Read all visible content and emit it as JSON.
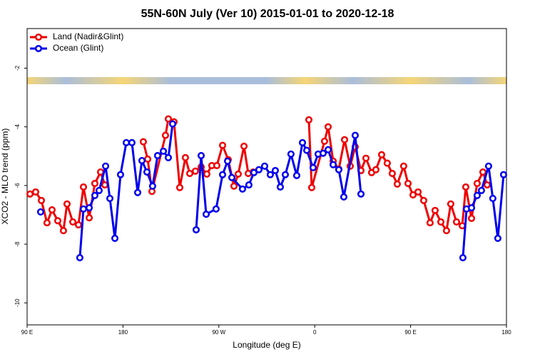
{
  "chart_data": {
    "type": "line",
    "title": "55N-60N July (Ver 10)   2015-01-01 to 2020-12-18",
    "x_label": "Longitude (deg E)",
    "y_label": "XCO2 - MLO trend (ppm)",
    "xlim": [
      90,
      540
    ],
    "ylim": [
      -10.75,
      -0.65
    ],
    "xticks": [
      {
        "value": 90,
        "label": "90 E"
      },
      {
        "value": 180,
        "label": "180"
      },
      {
        "value": 270,
        "label": "90 W"
      },
      {
        "value": 360,
        "label": "0"
      },
      {
        "value": 450,
        "label": "90 E"
      },
      {
        "value": 540,
        "label": "180"
      }
    ],
    "yticks": [
      -10,
      -8,
      -6,
      -4,
      -2
    ],
    "legend_position": "top-left",
    "series": [
      {
        "name": "Land (Nadir&Glint)",
        "color": "#ee0000",
        "x": [
          92.7,
          98.0,
          103.4,
          108.7,
          113.4,
          118.8,
          124.1,
          127.5,
          132.9,
          138.2,
          142.9,
          148.3,
          153.6,
          159.0,
          163.0,
          null,
          199.1,
          203.2,
          207.2,
          219.9,
          222.6,
          227.9,
          233.3,
          238.6,
          242.7,
          248.0,
          253.4,
          258.7,
          263.4,
          268.1,
          273.5,
          278.8,
          284.2,
          288.2,
          293.6,
          297.6,
          302.3,
          null,
          354.5,
          357.2,
          369.2,
          372.6,
          377.3,
          382.6,
          388.0,
          393.3,
          398.0,
          403.4,
          408.1,
          413.4,
          417.4,
          422.8,
          428.1,
          432.8,
          437.5,
          443.5,
          447.6,
          452.3,
          457.0,
          462.3,
          468.3,
          473.0,
          478.4,
          483.7,
          487.7,
          493.1,
          498.5,
          501.8,
          507.2,
          512.5,
          517.9,
          521.9
        ],
        "values": [
          -6.29,
          -6.22,
          -6.51,
          -7.27,
          -6.83,
          -7.2,
          -7.54,
          -6.63,
          -7.24,
          -7.34,
          -6.05,
          -7.1,
          -5.93,
          -5.54,
          -5.98,
          null,
          -4.51,
          -5.1,
          -6.2,
          -4.29,
          -3.73,
          -3.83,
          -6.07,
          -5.05,
          -5.59,
          -5.51,
          -5.37,
          -5.61,
          -5.32,
          -5.32,
          -4.63,
          -5.12,
          -6.02,
          -5.61,
          -4.66,
          -5.59,
          -5.54,
          null,
          -3.76,
          -6.07,
          -4.49,
          -4.0,
          -5.17,
          -5.44,
          -4.44,
          -5.34,
          -4.68,
          -5.49,
          -5.07,
          -5.56,
          -5.46,
          -4.95,
          -5.24,
          -5.59,
          -5.95,
          -5.34,
          -5.93,
          -6.32,
          -6.22,
          -6.51,
          -7.27,
          -6.85,
          -7.24,
          -7.54,
          -6.63,
          -7.24,
          -7.37,
          -6.05,
          -7.12,
          -5.93,
          -5.54,
          -5.98
        ]
      },
      {
        "name": "Ocean (Glint)",
        "color": "#0000ee",
        "x": [
          102.7,
          null,
          139.5,
          142.9,
          148.3,
          153.6,
          157.6,
          163.7,
          167.7,
          172.4,
          177.7,
          183.1,
          188.4,
          193.8,
          197.8,
          202.5,
          207.8,
          212.5,
          217.9,
          222.6,
          226.6,
          null,
          248.7,
          253.4,
          258.1,
          267.4,
          273.5,
          278.2,
          282.2,
          292.2,
          298.2,
          302.9,
          307.6,
          313.0,
          318.3,
          323.0,
          327.7,
          332.4,
          337.7,
          343.1,
          348.5,
          352.5,
          358.5,
          363.2,
          367.9,
          372.6,
          377.3,
          382.6,
          387.3,
          398.0,
          403.4,
          null,
          499.1,
          502.5,
          507.2,
          512.5,
          516.5,
          523.2,
          527.2,
          531.9,
          537.3
        ],
        "values": [
          -6.9,
          null,
          -8.46,
          -6.8,
          -6.76,
          -6.34,
          -6.17,
          -5.34,
          -6.44,
          -7.8,
          -5.63,
          -4.54,
          -4.54,
          -6.24,
          -5.15,
          -5.54,
          -6.02,
          -4.98,
          -4.83,
          -5.05,
          -3.9,
          null,
          -7.51,
          -4.98,
          -6.98,
          -6.8,
          -5.63,
          -5.17,
          -5.73,
          -6.12,
          -5.98,
          -5.56,
          -5.46,
          -5.34,
          -5.63,
          -5.49,
          -6.05,
          -5.63,
          -4.93,
          -5.66,
          -4.54,
          -4.8,
          -5.39,
          -4.93,
          -4.9,
          -4.78,
          -5.29,
          -5.46,
          -6.39,
          -4.29,
          -6.29,
          null,
          -8.46,
          -6.8,
          -6.76,
          -6.34,
          -6.17,
          -5.34,
          -6.44,
          -7.8,
          -5.63
        ]
      }
    ]
  }
}
